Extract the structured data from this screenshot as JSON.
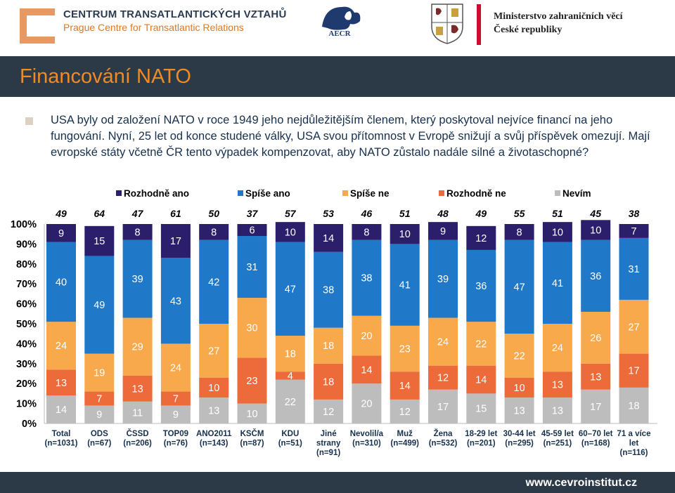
{
  "header": {
    "org_line1": "CENTRUM TRANSATLANTICKÝCH VZTAHŮ",
    "org_line2": "Prague Centre for Transatlantic Relations",
    "aecr_label": "AECR",
    "ministry_line1": "Ministerstvo zahraničních věcí",
    "ministry_line2": "České republiky"
  },
  "title": "Financování NATO",
  "intro": "USA byly od založení NATO v roce 1949 jeho nejdůležitějším členem, který poskytoval nejvíce financí na jeho fungování. Nyní, 25 let od konce studené války, USA svou přítomnost v Evropě snižují a svůj příspěvek omezují. Mají evropské státy včetně ČR tento výpadek kompenzovat, aby NATO zůstalo nadále silné a životaschopné?",
  "footer": {
    "url": "www.cevroinstitut.cz"
  },
  "chart_data": {
    "type": "bar",
    "stacked": true,
    "percent": true,
    "ylim": [
      0,
      100
    ],
    "yticks": [
      "0%",
      "10%",
      "20%",
      "30%",
      "40%",
      "50%",
      "60%",
      "70%",
      "80%",
      "90%",
      "100%"
    ],
    "legend_position": "top",
    "categories": [
      [
        "Total",
        "(n=1031)"
      ],
      [
        "ODS",
        "(n=67)"
      ],
      [
        "ČSSD",
        "(n=206)"
      ],
      [
        "TOP09",
        "(n=76)"
      ],
      [
        "ANO2011",
        "(n=143)"
      ],
      [
        "KSČM",
        "(n=87)"
      ],
      [
        "KDU",
        "(n=51)"
      ],
      [
        "Jiné",
        "strany",
        "(n=91)"
      ],
      [
        "Nevolil/a",
        "(n=310)"
      ],
      [
        "Muž",
        "(n=499)"
      ],
      [
        "Žena",
        "(n=532)"
      ],
      [
        "18-29 let",
        "(n=201)"
      ],
      [
        "30-44 let",
        "(n=295)"
      ],
      [
        "45-59 let",
        "(n=251)"
      ],
      [
        "60–70 let",
        "(n=168)"
      ],
      [
        "71 a více",
        "let",
        "(n=116)"
      ]
    ],
    "top_totals": [
      "49",
      "64",
      "47",
      "61",
      "50",
      "37",
      "57",
      "53",
      "46",
      "51",
      "48",
      "49",
      "55",
      "51",
      "45",
      "38"
    ],
    "series": [
      {
        "name": "Nevím",
        "color": "#bdbdbd",
        "values": [
          14,
          9,
          11,
          9,
          13,
          10,
          22,
          12,
          20,
          12,
          17,
          15,
          13,
          13,
          17,
          18
        ]
      },
      {
        "name": "Rozhodně ne",
        "color": "#ed6a3a",
        "values": [
          13,
          7,
          13,
          7,
          10,
          23,
          4,
          18,
          14,
          14,
          12,
          14,
          10,
          13,
          13,
          17
        ]
      },
      {
        "name": "Spíše ne",
        "color": "#f7a94c",
        "values": [
          24,
          19,
          29,
          24,
          27,
          30,
          18,
          18,
          20,
          23,
          24,
          22,
          22,
          24,
          26,
          27
        ]
      },
      {
        "name": "Spíše ano",
        "color": "#1f78c8",
        "values": [
          40,
          49,
          39,
          43,
          42,
          31,
          47,
          38,
          38,
          41,
          39,
          36,
          47,
          41,
          36,
          31
        ]
      },
      {
        "name": "Rozhodně ano",
        "color": "#2b1e6b",
        "values": [
          9,
          15,
          8,
          17,
          8,
          6,
          10,
          14,
          8,
          10,
          9,
          12,
          8,
          10,
          10,
          7
        ]
      }
    ],
    "legend_order": [
      "Rozhodně ano",
      "Spíše ano",
      "Spíše ne",
      "Rozhodně ne",
      "Nevím"
    ]
  }
}
